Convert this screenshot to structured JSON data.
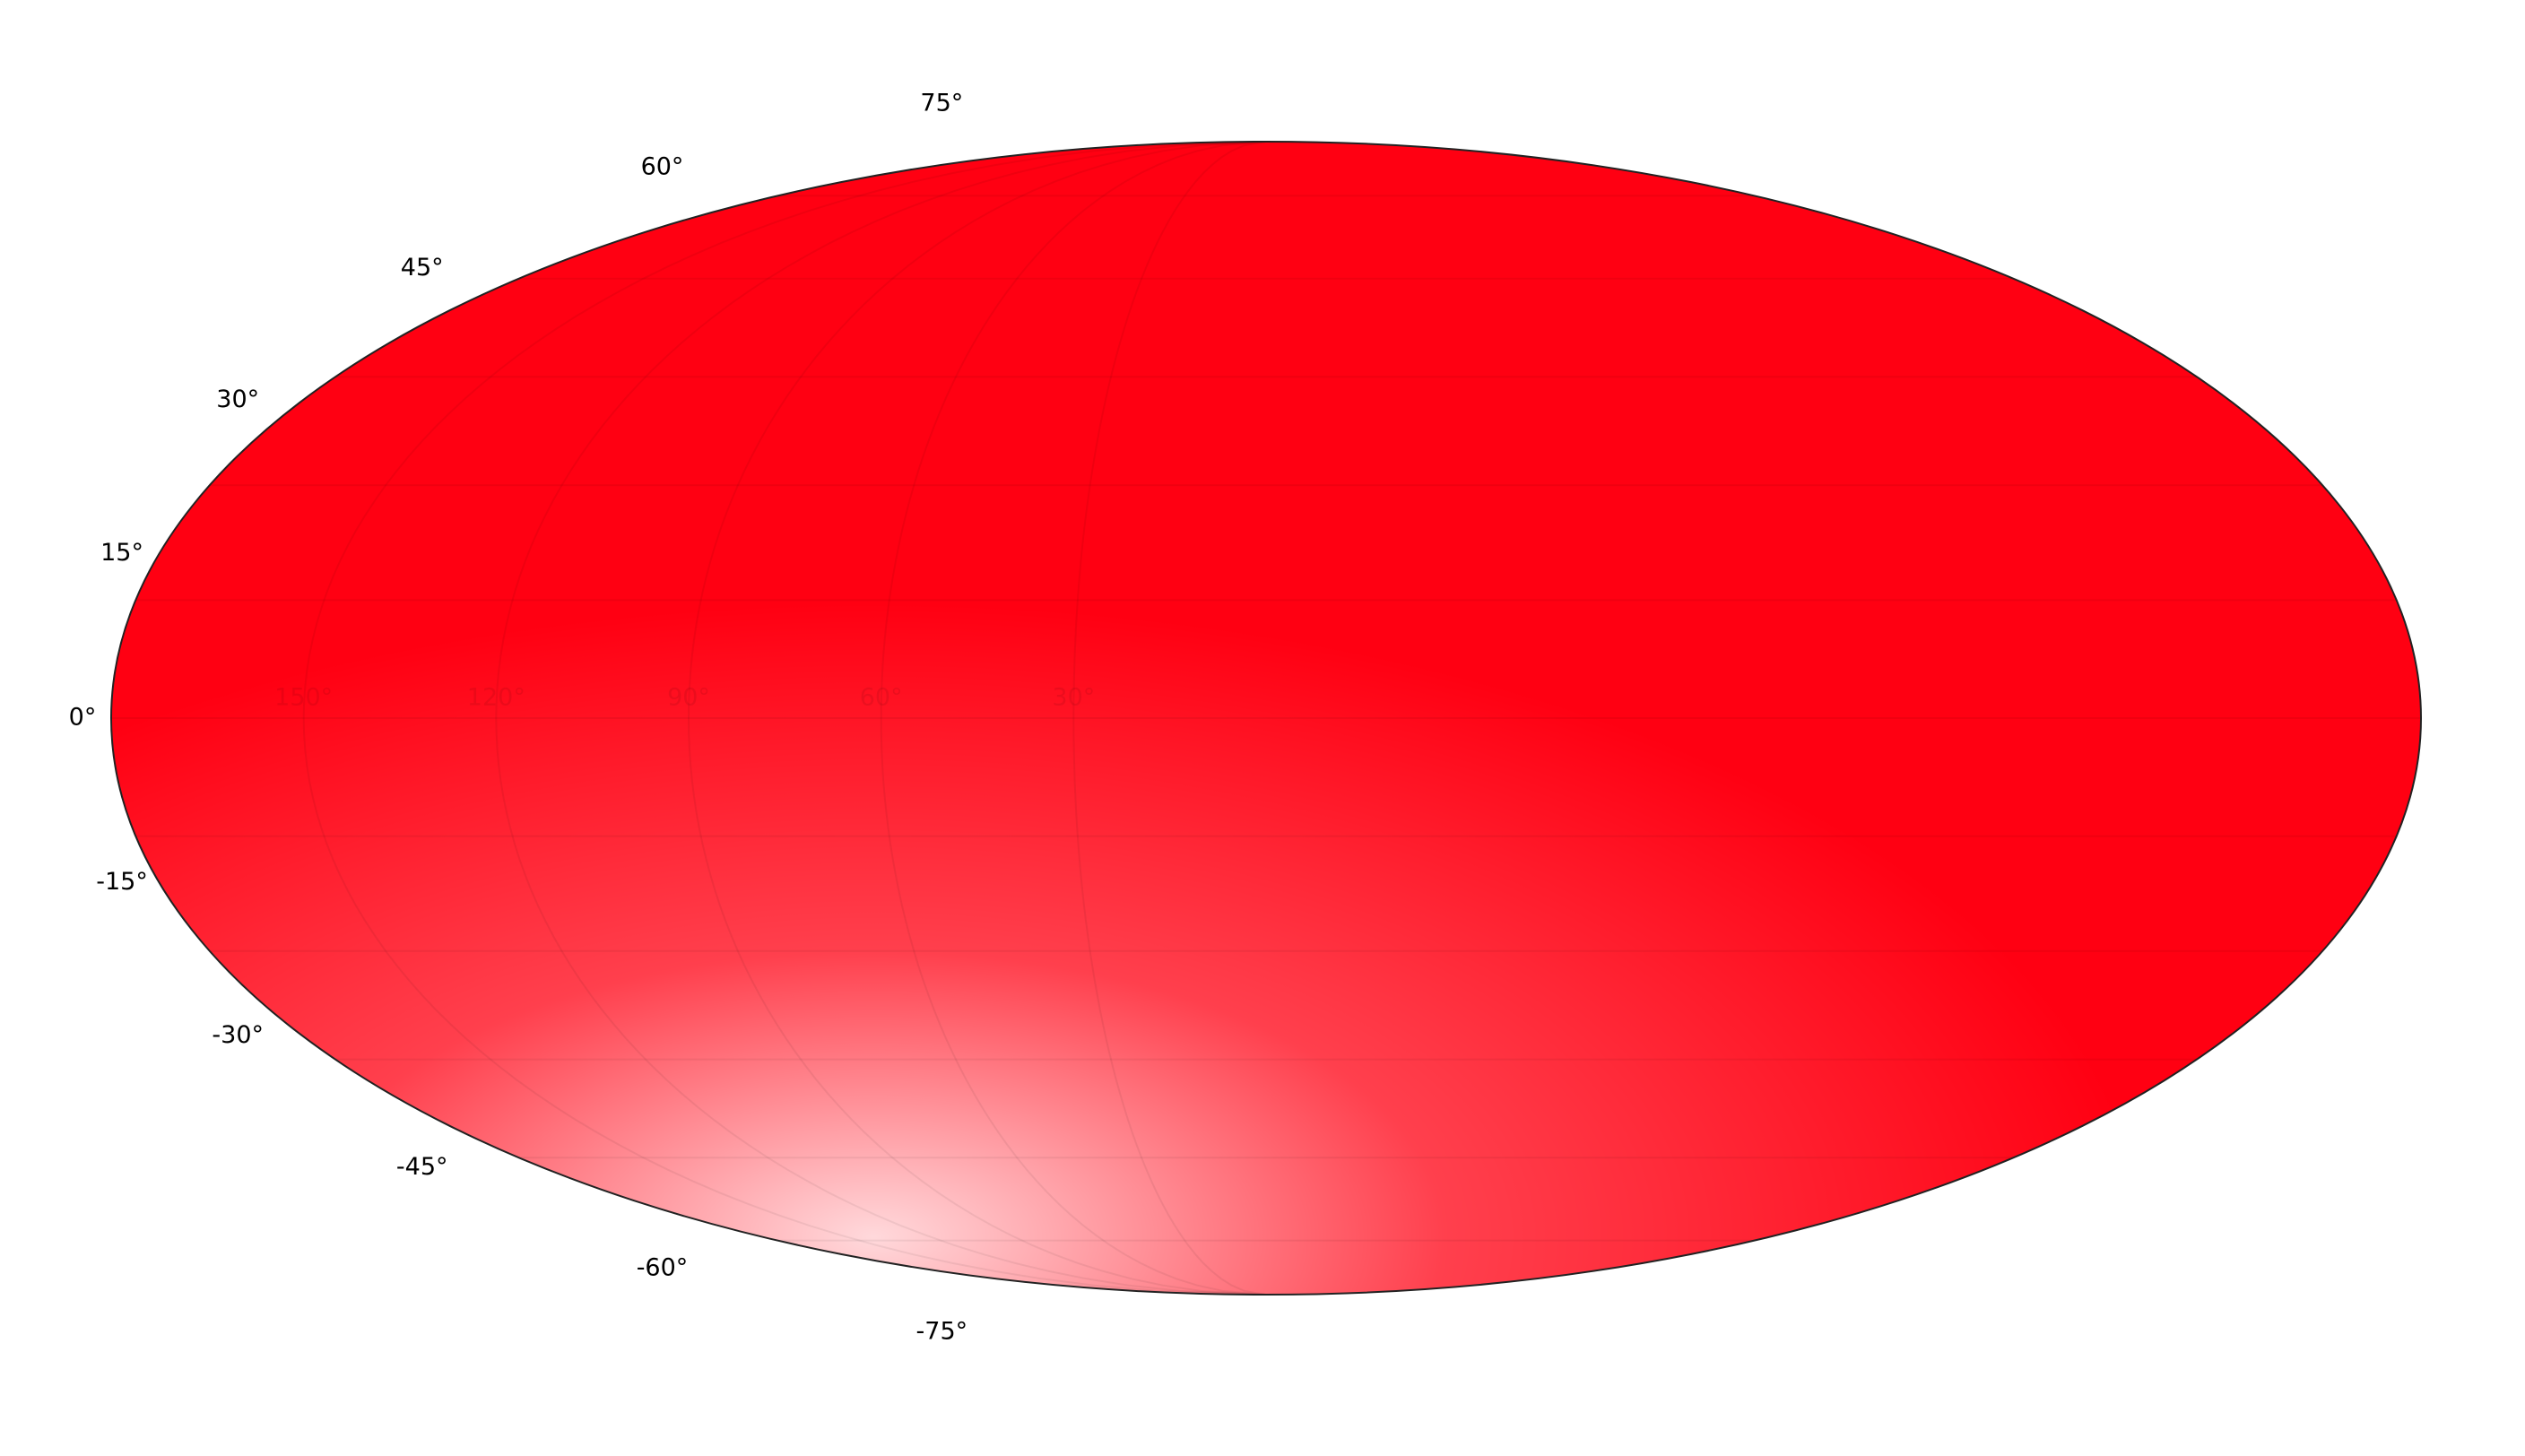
{
  "chart_data": {
    "type": "scatter",
    "projection": "mollweide",
    "color": "#ff0012",
    "grid": true,
    "xlim": [
      180,
      -180
    ],
    "xticks": [
      {
        "value": 150,
        "label": "150°"
      },
      {
        "value": 120,
        "label": "120°"
      },
      {
        "value": 90,
        "label": "90°"
      },
      {
        "value": 60,
        "label": "60°"
      },
      {
        "value": 30,
        "label": "30°"
      }
    ],
    "ylim": [
      -90,
      90
    ],
    "yticks": [
      {
        "value": 75,
        "label": "75°"
      },
      {
        "value": 60,
        "label": "60°"
      },
      {
        "value": 45,
        "label": "45°"
      },
      {
        "value": 30,
        "label": "30°"
      },
      {
        "value": 15,
        "label": "15°"
      },
      {
        "value": 0,
        "label": "0°"
      },
      {
        "value": -15,
        "label": "-15°"
      },
      {
        "value": -30,
        "label": "-30°"
      },
      {
        "value": -45,
        "label": "-45°"
      },
      {
        "value": -60,
        "label": "-60°"
      },
      {
        "value": -75,
        "label": "-75°"
      }
    ]
  }
}
